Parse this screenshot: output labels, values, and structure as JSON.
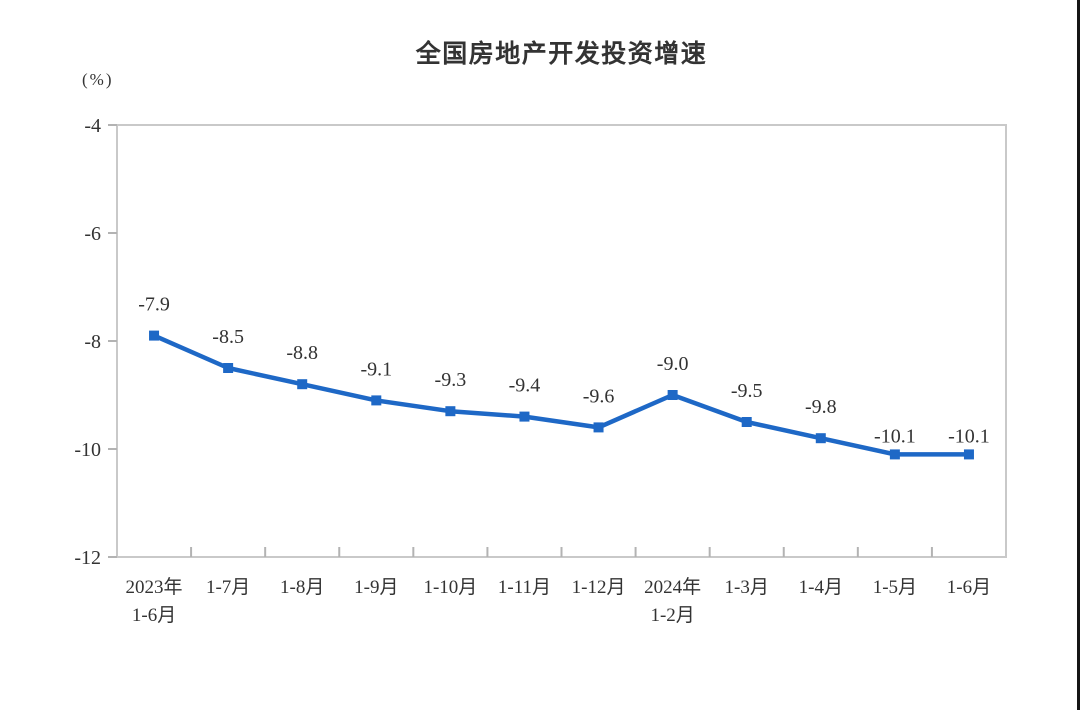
{
  "chart_data": {
    "type": "line",
    "title": "全国房地产开发投资增速",
    "unit_label": "(%)",
    "categories": [
      "2023年\n1-6月",
      "1-7月",
      "1-8月",
      "1-9月",
      "1-10月",
      "1-11月",
      "1-12月",
      "2024年\n1-2月",
      "1-3月",
      "1-4月",
      "1-5月",
      "1-6月"
    ],
    "values": [
      -7.9,
      -8.5,
      -8.8,
      -9.1,
      -9.3,
      -9.4,
      -9.6,
      -9.0,
      -9.5,
      -9.8,
      -10.1,
      -10.1
    ],
    "data_labels": [
      "-7.9",
      "-8.5",
      "-8.8",
      "-9.1",
      "-9.3",
      "-9.4",
      "-9.6",
      "-9.0",
      "-9.5",
      "-9.8",
      "-10.1",
      "-10.1"
    ],
    "ylim": [
      -12,
      -4
    ],
    "yticks": [
      "-4",
      "-6",
      "-8",
      "-10",
      "-12"
    ],
    "ytick_values": [
      -4,
      -6,
      -8,
      -10,
      -12
    ],
    "grid": false,
    "legend": "none",
    "line_color": "#1E68C6",
    "marker": "square",
    "axis_color": "#c9c9c9",
    "tick_color": "#b3b3b3",
    "text_color": "#333333"
  }
}
